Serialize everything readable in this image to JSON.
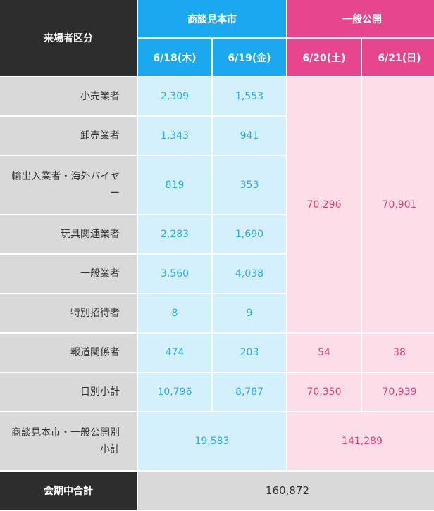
{
  "header": {
    "visitor_category": "来場者区分",
    "trade_show": "商談見本市",
    "public_open": "一般公開",
    "dates": [
      "6/18(木)",
      "6/19(金)",
      "6/20(土)",
      "6/21(日)"
    ]
  },
  "rows": [
    {
      "label": "小売業者",
      "d1": "2,309",
      "d2": "1,553"
    },
    {
      "label": "卸売業者",
      "d1": "1,343",
      "d2": "941"
    },
    {
      "label": "輸出入業者・海外バイヤー",
      "d1": "819",
      "d2": "353"
    },
    {
      "label": "玩具関連業者",
      "d1": "2,283",
      "d2": "1,690"
    },
    {
      "label": "一般業者",
      "d1": "3,560",
      "d2": "4,038"
    },
    {
      "label": "特別招待者",
      "d1": "8",
      "d2": "9"
    }
  ],
  "public_merged": {
    "d3": "70,296",
    "d4": "70,901"
  },
  "press": {
    "label": "報道関係者",
    "d1": "474",
    "d2": "203",
    "d3": "54",
    "d4": "38"
  },
  "daily_subtotal": {
    "label": "日別小計",
    "d1": "10,796",
    "d2": "8,787",
    "d3": "70,350",
    "d4": "70,939"
  },
  "period_subtotal": {
    "label": "商談見本市・一般公開別小計",
    "trade": "19,583",
    "public": "141,289"
  },
  "grand_total": {
    "label": "会期中合計",
    "value": "160,872"
  },
  "colors": {
    "dark": "#2d2d2d",
    "blue_header": "#1aa9f0",
    "pink_header": "#e8458f",
    "blue_cell": "#d4f0fc",
    "pink_cell": "#fcdde8",
    "gray_cell": "#d9d9d9"
  }
}
